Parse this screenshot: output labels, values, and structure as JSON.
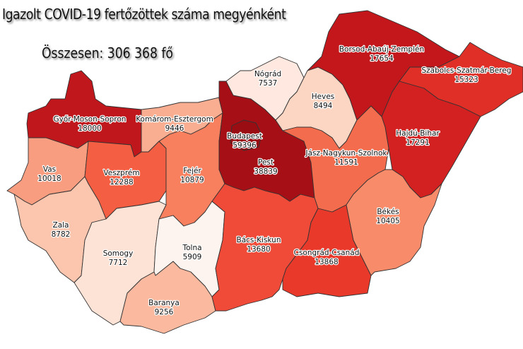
{
  "title": "Igazolt COVID-19 fertőzöttek száma megyénként",
  "total": "Összesen: 306 368 fő",
  "counties": [
    {
      "name": "Győr-Moson-Sopron",
      "value": "18000",
      "color": "#c0171c"
    },
    {
      "name": "Komárom-Esztergom",
      "value": "9446",
      "color": "#f9ae92"
    },
    {
      "name": "Vas",
      "value": "10018",
      "color": "#f89d80"
    },
    {
      "name": "Veszprém",
      "value": "12288",
      "color": "#f45e42"
    },
    {
      "name": "Fejér",
      "value": "10879",
      "color": "#f8805e"
    },
    {
      "name": "Zala",
      "value": "8782",
      "color": "#fbc5ae"
    },
    {
      "name": "Somogy",
      "value": "7712",
      "color": "#fde2d6"
    },
    {
      "name": "Tolna",
      "value": "5909",
      "color": "#fef4ef"
    },
    {
      "name": "Baranya",
      "value": "9256",
      "color": "#fbbaa0"
    },
    {
      "name": "Pest",
      "value": "38839",
      "color": "#a50f15"
    },
    {
      "name": "Budapest",
      "value": "59396",
      "color": "#9a0d13"
    },
    {
      "name": "Nógrád",
      "value": "7537",
      "color": "#fee8df"
    },
    {
      "name": "Heves",
      "value": "8494",
      "color": "#fcd5c3"
    },
    {
      "name": "Borsod-Abaúj-Zemplén",
      "value": "17654",
      "color": "#c3171c"
    },
    {
      "name": "Szabolcs-Szatmár-Bereg",
      "value": "15323",
      "color": "#df2f27"
    },
    {
      "name": "Hajdú-Bihar",
      "value": "17291",
      "color": "#d32020"
    },
    {
      "name": "Jász-Nagykun-Szolnok",
      "value": "11591",
      "color": "#f46c4e"
    },
    {
      "name": "Bács-Kiskun",
      "value": "13680",
      "color": "#ef4b38"
    },
    {
      "name": "Csongrád-Csanád",
      "value": "13868",
      "color": "#e8392b"
    },
    {
      "name": "Békés",
      "value": "10405",
      "color": "#f88b6a"
    }
  ]
}
